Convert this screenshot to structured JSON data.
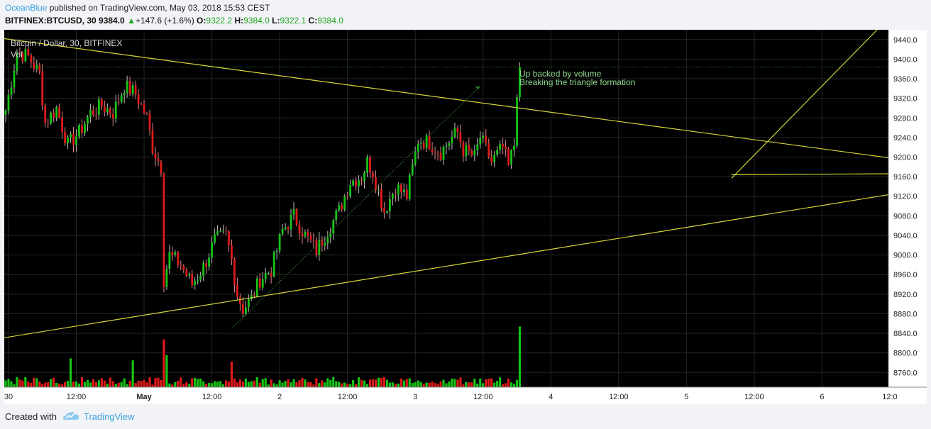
{
  "header": {
    "author": "OceanBlue",
    "published_text": " published on TradingView.com, May 03, 2018 15:53 CEST",
    "symbol": "BITFINEX:BTCUSD, 30",
    "last": "9384.0",
    "change_arrow": "▲",
    "change": "+147.6 (+1.6%)",
    "o_label": "O:",
    "o_value": "9322.2",
    "h_label": "H:",
    "h_value": "9384.0",
    "l_label": "L:",
    "l_value": "9322.1",
    "c_label": "C:",
    "c_value": "9384.0"
  },
  "chart_data": {
    "type": "candlestick",
    "title": "Bitcoin / Dollar, 30, BITFINEX",
    "volume_label": "Vol",
    "ylim": [
      8730,
      9460
    ],
    "y_ticks": [
      8760,
      8800,
      8840,
      8880,
      8920,
      8960,
      9000,
      9040,
      9080,
      9120,
      9160,
      9200,
      9240,
      9280,
      9320,
      9360,
      9400,
      9440
    ],
    "y_tick_labels": [
      "8760.0",
      "8800.0",
      "8840.0",
      "8880.0",
      "8920.0",
      "8960.0",
      "9000.0",
      "9040.0",
      "9080.0",
      "9120.0",
      "9160.0",
      "9200.0",
      "9240.0",
      "9280.0",
      "9320.0",
      "9360.0",
      "9400.0",
      "9440.0"
    ],
    "x_tick_labels": [
      "30",
      "12:00",
      "May",
      "12:00",
      "2",
      "12:00",
      "3",
      "12:00",
      "4",
      "12:00",
      "5",
      "12:00",
      "6",
      "12:0"
    ],
    "x_tick_bar_index": [
      1,
      25,
      49,
      73,
      97,
      121,
      145,
      169,
      193,
      217,
      241,
      265,
      289,
      313
    ],
    "bars_total_visible": 313,
    "current_price": 9384.0,
    "annotation_lines": [
      "Up backed by volume",
      "Breaking the triangle formation"
    ],
    "trendlines": [
      {
        "name": "upper-trendline",
        "from": [
          -0.5,
          9442
        ],
        "to": [
          314.5,
          9197
        ]
      },
      {
        "name": "lower-trendline",
        "from": [
          -1.5,
          8830
        ],
        "to": [
          314.5,
          9125
        ]
      },
      {
        "name": "target-horizontal",
        "from": [
          257,
          9164
        ],
        "to": [
          316,
          9166
        ]
      },
      {
        "name": "target-diagonal",
        "from": [
          257,
          9157
        ],
        "to": [
          308.5,
          9460
        ]
      }
    ],
    "anchor_points": [
      [
        0,
        9295
      ],
      [
        4,
        9415
      ],
      [
        8,
        9405
      ],
      [
        12,
        9370
      ],
      [
        14,
        9270
      ],
      [
        18,
        9300
      ],
      [
        22,
        9225
      ],
      [
        26,
        9250
      ],
      [
        30,
        9290
      ],
      [
        34,
        9305
      ],
      [
        38,
        9290
      ],
      [
        42,
        9345
      ],
      [
        46,
        9330
      ],
      [
        50,
        9280
      ],
      [
        52,
        9220
      ],
      [
        55,
        9180
      ],
      [
        56,
        8950
      ],
      [
        58,
        9000
      ],
      [
        62,
        8980
      ],
      [
        66,
        8940
      ],
      [
        70,
        8975
      ],
      [
        74,
        9030
      ],
      [
        78,
        9040
      ],
      [
        80,
        8990
      ],
      [
        82,
        8920
      ],
      [
        84,
        8890
      ],
      [
        87,
        8910
      ],
      [
        90,
        8950
      ],
      [
        94,
        8970
      ],
      [
        98,
        9050
      ],
      [
        102,
        9080
      ],
      [
        106,
        9040
      ],
      [
        110,
        9010
      ],
      [
        114,
        9050
      ],
      [
        118,
        9090
      ],
      [
        122,
        9150
      ],
      [
        126,
        9160
      ],
      [
        128,
        9190
      ],
      [
        130,
        9170
      ],
      [
        134,
        9090
      ],
      [
        138,
        9140
      ],
      [
        142,
        9120
      ],
      [
        146,
        9235
      ],
      [
        150,
        9230
      ],
      [
        154,
        9210
      ],
      [
        158,
        9240
      ],
      [
        160,
        9250
      ],
      [
        162,
        9215
      ],
      [
        166,
        9200
      ],
      [
        168,
        9240
      ],
      [
        172,
        9190
      ],
      [
        176,
        9220
      ],
      [
        178,
        9180
      ],
      [
        180,
        9225
      ],
      [
        181,
        9322
      ],
      [
        182,
        9384
      ]
    ],
    "volume_spikes": [
      [
        23,
        0.45
      ],
      [
        45,
        0.42
      ],
      [
        56,
        0.75
      ],
      [
        57,
        0.5
      ],
      [
        80,
        0.4
      ],
      [
        182,
        0.95
      ],
      [
        183,
        0.4
      ]
    ]
  }
}
